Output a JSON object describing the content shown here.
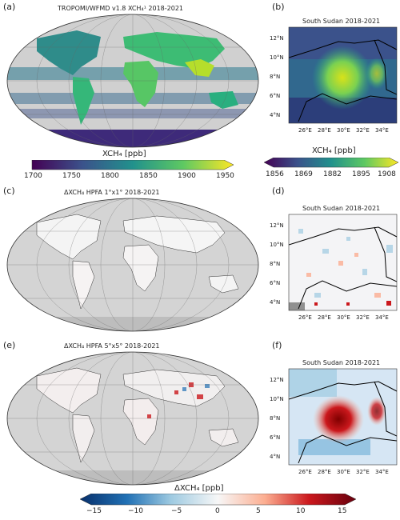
{
  "panels": {
    "a": {
      "letter": "(a)",
      "title": "TROPOMI/WFMD v1.8 XCH₄¹ 2018-2021"
    },
    "b": {
      "letter": "(b)",
      "title": "South Sudan 2018-2021"
    },
    "c": {
      "letter": "(c)",
      "title": "ΔXCH₄ HPFA 1°x1° 2018-2021"
    },
    "d": {
      "letter": "(d)",
      "title": "South Sudan 2018-2021"
    },
    "e": {
      "letter": "(e)",
      "title": "ΔXCH₄ HPFA 5°x5° 2018-2021"
    },
    "f": {
      "letter": "(f)",
      "title": "South Sudan 2018-2021"
    }
  },
  "regional_axes": {
    "lat_ticks": [
      "12°N",
      "10°N",
      "8°N",
      "6°N",
      "4°N"
    ],
    "lon_ticks": [
      "26°E",
      "28°E",
      "30°E",
      "32°E",
      "34°E"
    ]
  },
  "colorbars": {
    "global_xch4": {
      "label": "XCH₄ [ppb]",
      "ticks": [
        "1700",
        "1750",
        "1800",
        "1850",
        "1900",
        "1950"
      ],
      "range": [
        1700,
        1950
      ],
      "colors": [
        "#440154",
        "#3b528b",
        "#21918c",
        "#5ec962",
        "#fde725"
      ]
    },
    "regional_xch4": {
      "label": "XCH₄ [ppb]",
      "ticks": [
        "1856",
        "1869",
        "1882",
        "1895",
        "1908"
      ],
      "range": [
        1856,
        1908
      ],
      "colors": [
        "#440154",
        "#3b528b",
        "#21918c",
        "#5ec962",
        "#fde725"
      ]
    },
    "delta": {
      "label": "ΔXCH₄ [ppb]",
      "ticks": [
        "−15",
        "−10",
        "−5",
        "0",
        "5",
        "10",
        "15"
      ],
      "range": [
        -15,
        15
      ],
      "colors": [
        "#08306b",
        "#2171b5",
        "#9ecae1",
        "#f7f7f7",
        "#fcae91",
        "#cb181d",
        "#67000d"
      ]
    }
  }
}
